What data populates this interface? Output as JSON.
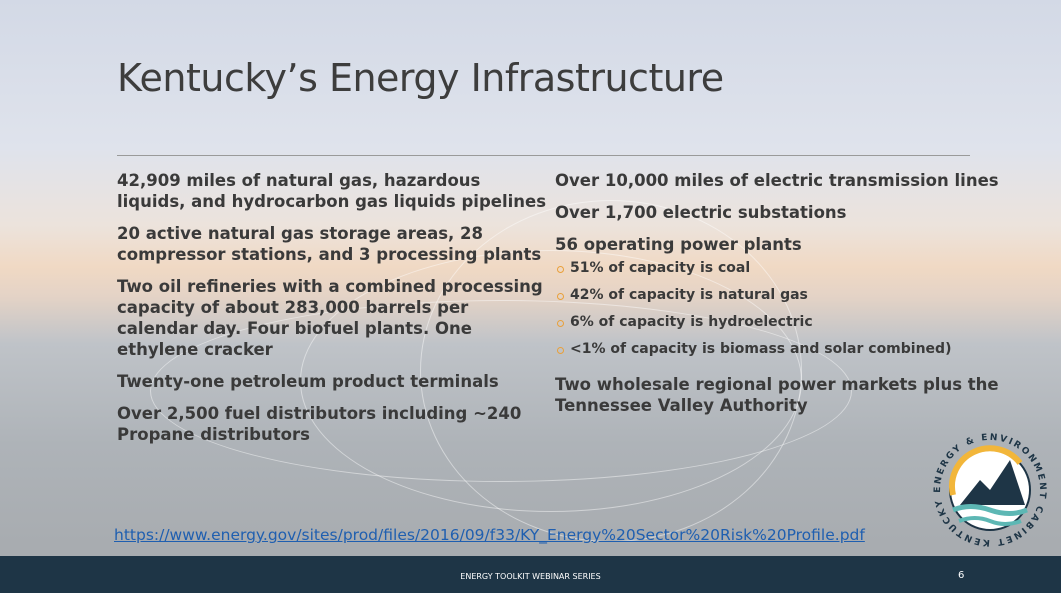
{
  "title": "Kentucky’s Energy Infrastructure",
  "left_column": [
    "42,909 miles of natural gas, hazardous liquids, and hydrocarbon gas liquids pipelines",
    "20 active natural gas storage areas, 28 compressor stations, and 3 processing plants",
    "Two oil refineries with a combined processing capacity of about 283,000 barrels per calendar day. Four biofuel plants. One ethylene cracker",
    "Twenty-one petroleum product terminals",
    "Over 2,500 fuel distributors including ~240 Propane distributors"
  ],
  "right_column": [
    {
      "text": "Over 10,000 miles of electric transmission lines"
    },
    {
      "text": "Over 1,700 electric substations"
    },
    {
      "text": "56 operating  power plants",
      "bullets": [
        "51% of capacity is coal",
        "42% of capacity is natural gas",
        "6% of capacity is hydroelectric",
        "<1% of capacity is biomass and solar combined)"
      ]
    },
    {
      "text": "Two wholesale regional power markets plus the Tennessee Valley Authority"
    }
  ],
  "link": "https://www.energy.gov/sites/prod/files/2016/09/f33/KY_Energy%20Sector%20Risk%20Profile.pdf",
  "logo": {
    "text": "KENTUCKY ENERGY & ENVIRONMENT CABINET"
  },
  "footer": {
    "text": "ENERGY TOOLKIT WEBINAR SERIES",
    "page_number": 6
  }
}
